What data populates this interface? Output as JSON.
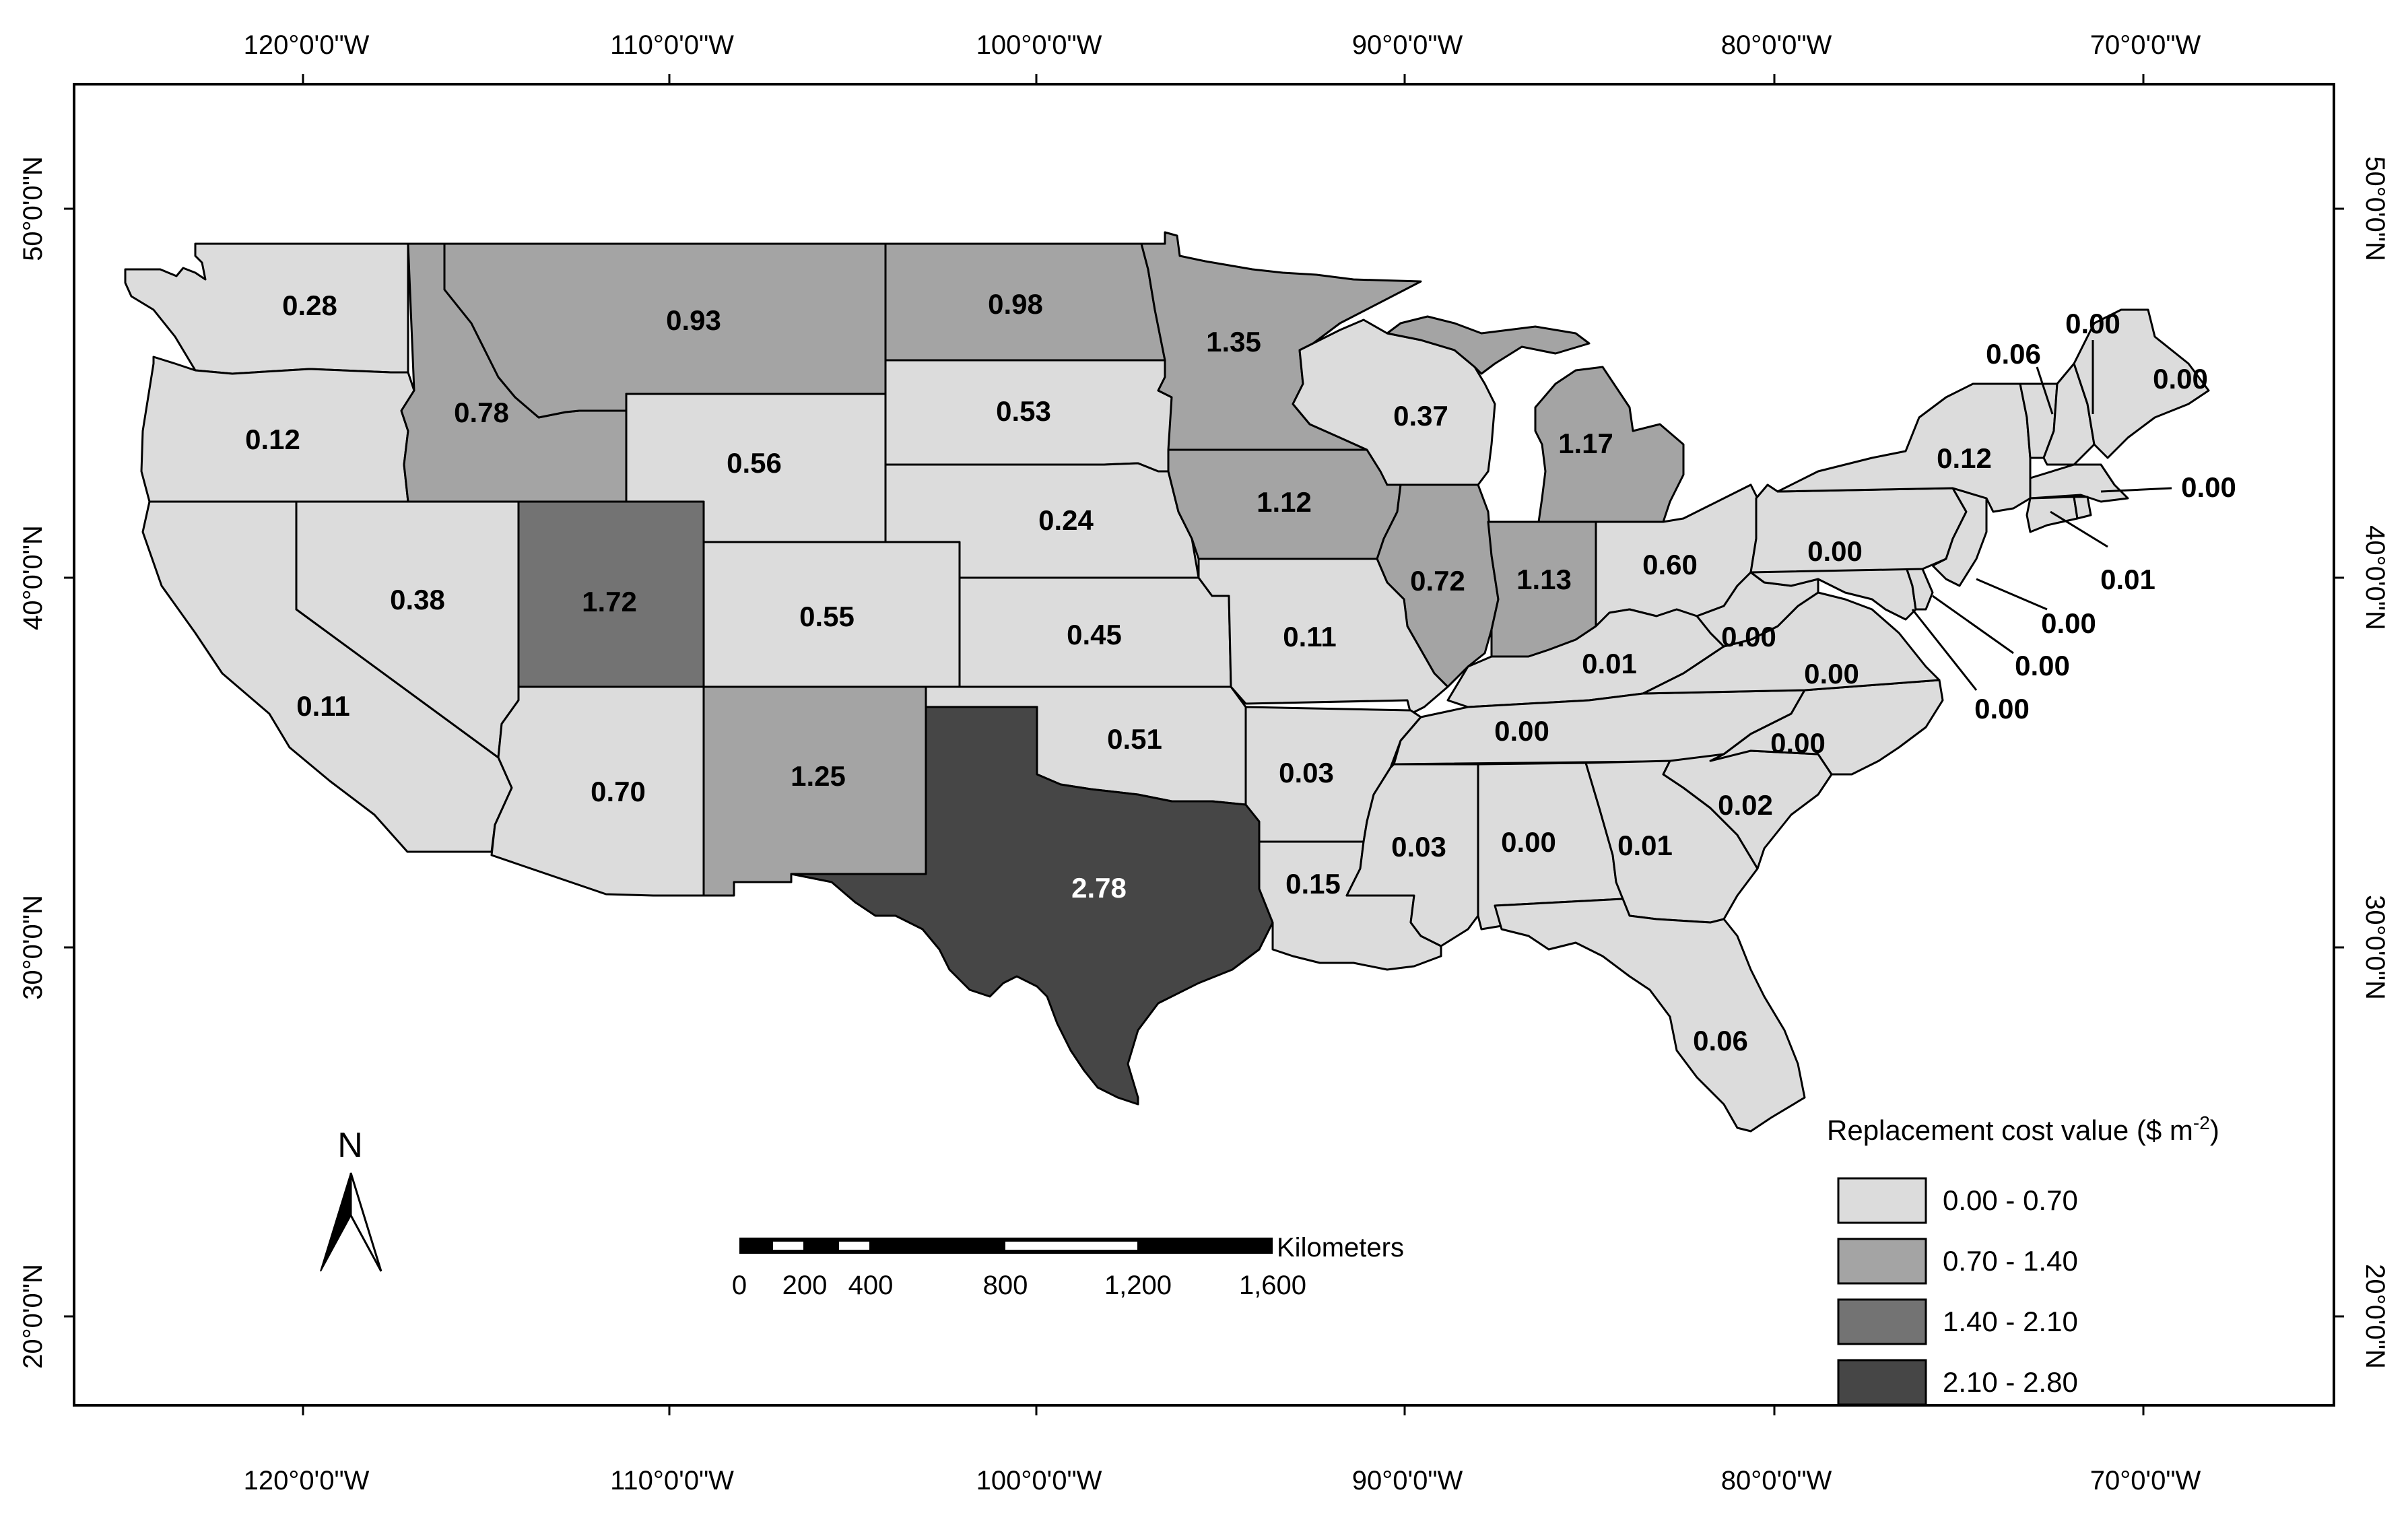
{
  "colors": {
    "class1": "#dcdcdc",
    "class2": "#a4a4a4",
    "class3": "#737373",
    "class4": "#464646",
    "frame": "#000000"
  },
  "top_axis": [
    "120°0'0\"W",
    "110°0'0\"W",
    "100°0'0\"W",
    "90°0'0\"W",
    "80°0'0\"W",
    "70°0'0\"W"
  ],
  "bottom_axis": [
    "120°0'0\"W",
    "110°0'0\"W",
    "100°0'0\"W",
    "90°0'0\"W",
    "80°0'0\"W",
    "70°0'0\"W"
  ],
  "left_axis": [
    "50°0'0\"N",
    "40°0'0\"N",
    "30°0'0\"N",
    "20°0'0\"N"
  ],
  "right_axis": [
    "50°0'0\"N",
    "40°0'0\"N",
    "30°0'0\"N",
    "20°0'0\"N"
  ],
  "states": {
    "WA": "0.28",
    "OR": "0.12",
    "CA": "0.11",
    "ID": "0.78",
    "NV": "0.38",
    "MT": "0.93",
    "WY": "0.56",
    "UT": "1.72",
    "AZ": "0.70",
    "CO": "0.55",
    "NM": "1.25",
    "ND": "0.98",
    "SD": "0.53",
    "NE": "0.24",
    "KS": "0.45",
    "OK": "0.51",
    "TX": "2.78",
    "MN": "1.35",
    "IA": "1.12",
    "MO": "0.11",
    "AR": "0.03",
    "LA": "0.15",
    "WI": "0.37",
    "IL": "0.72",
    "MI": "1.17",
    "IN": "1.13",
    "OH": "0.60",
    "KY": "0.01",
    "TN": "0.00",
    "MS": "0.03",
    "AL": "0.00",
    "GA": "0.01",
    "FL": "0.06",
    "SC": "0.02",
    "NC": "0.00",
    "VA": "0.00",
    "WV": "0.00",
    "PA": "0.00",
    "NY": "0.12",
    "VT": "0.06",
    "NH": "0.00",
    "ME": "0.00",
    "MA": "0.00",
    "CT_RI": "0.01",
    "NJ": "0.00",
    "DE": "0.00",
    "MD": "0.00"
  },
  "legend": {
    "title": "Replacement cost value ($ m",
    "title_sup": "-2",
    "title_end": ")",
    "items": [
      "0.00 - 0.70",
      "0.70 - 1.40",
      "1.40 - 2.10",
      "2.10 - 2.80"
    ]
  },
  "north_arrow": {
    "label": "N",
    "icon": "north-arrow-icon"
  },
  "scale_bar": {
    "unit": "Kilometers",
    "ticks": [
      "0",
      "200",
      "400",
      "800",
      "1,200",
      "1,600"
    ]
  }
}
